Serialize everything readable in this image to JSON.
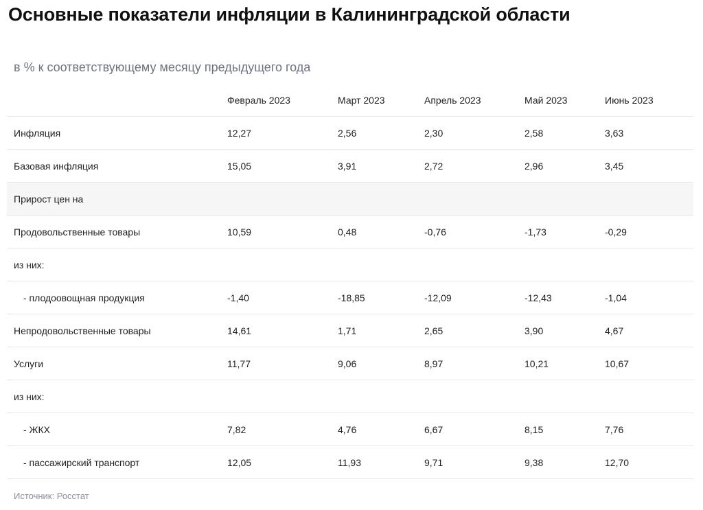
{
  "title": "Основные показатели инфляции в Калининградской области",
  "subtitle": "в % к соответствующему месяцу предыдущего года",
  "table": {
    "columns": [
      "Февраль 2023",
      "Март 2023",
      "Апрель 2023",
      "Май 2023",
      "Июнь 2023"
    ],
    "rows": [
      {
        "label": "Инфляция",
        "values": [
          "12,27",
          "2,56",
          "2,30",
          "2,58",
          "3,63"
        ]
      },
      {
        "label": "Базовая инфляция",
        "values": [
          "15,05",
          "3,91",
          "2,72",
          "2,96",
          "3,45"
        ]
      },
      {
        "label": "Прирост цен на",
        "values": [
          "",
          "",
          "",
          "",
          ""
        ]
      },
      {
        "label": "Продовольственные товары",
        "values": [
          "10,59",
          "0,48",
          "-0,76",
          "-1,73",
          "-0,29"
        ]
      },
      {
        "label": "из них:",
        "values": [
          "",
          "",
          "",
          "",
          ""
        ]
      },
      {
        "label": "- плодоовощная продукция",
        "values": [
          "-1,40",
          "-18,85",
          "-12,09",
          "-12,43",
          "-1,04"
        ]
      },
      {
        "label": "Непродовольственные товары",
        "values": [
          "14,61",
          "1,71",
          "2,65",
          "3,90",
          "4,67"
        ]
      },
      {
        "label": "Услуги",
        "values": [
          "11,77",
          "9,06",
          "8,97",
          "10,21",
          "10,67"
        ]
      },
      {
        "label": "из них:",
        "values": [
          "",
          "",
          "",
          "",
          ""
        ]
      },
      {
        "label": "- ЖКХ",
        "values": [
          "7,82",
          "4,76",
          "6,67",
          "8,15",
          "7,76"
        ]
      },
      {
        "label": "- пассажирский транспорт",
        "values": [
          "12,05",
          "11,93",
          "9,71",
          "9,38",
          "12,70"
        ]
      }
    ]
  },
  "source": "Источник: Росстат"
}
